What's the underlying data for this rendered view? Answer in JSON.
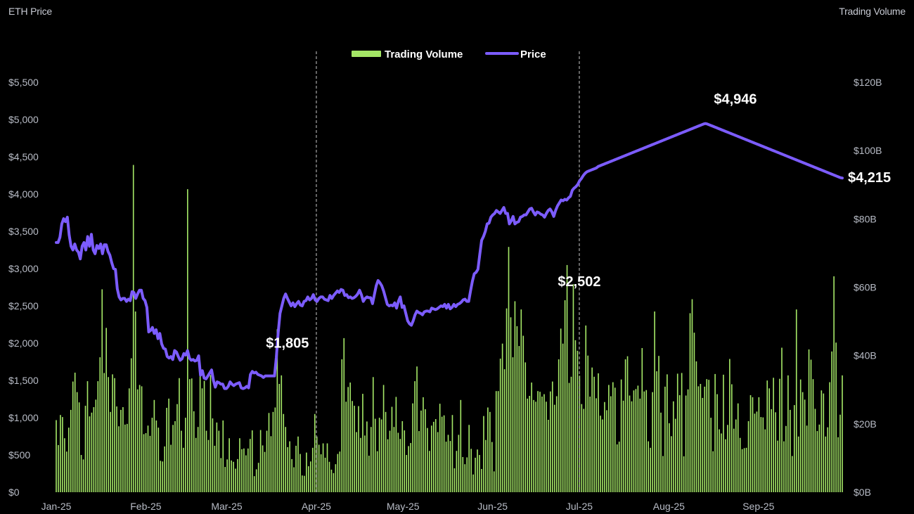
{
  "labels": {
    "left_axis_title": "ETH Price",
    "right_axis_title": "Trading Volume"
  },
  "colors": {
    "background": "#000000",
    "price": "#7c5cff",
    "volume": "#a4e666",
    "axis_text": "#b8bcc6",
    "annotation": "#ffffff",
    "marker_line": "#9a9a9a"
  },
  "chart_data": {
    "type": "bar+line",
    "title": "",
    "xlabel": "",
    "ylabel": "ETH Price",
    "y2label": "Trading Volume",
    "ylim": [
      0,
      5500
    ],
    "y2lim": [
      0,
      120
    ],
    "grid": false,
    "legend_position": "top-center",
    "x_ticks": [
      "Jan-25",
      "Feb-25",
      "Mar-25",
      "Apr-25",
      "May-25",
      "Jun-25",
      "Jul-25",
      "Aug-25",
      "Sep-25"
    ],
    "y_ticks": [
      "$0",
      "$500",
      "$1,000",
      "$1,500",
      "$2,000",
      "$2,500",
      "$3,000",
      "$3,500",
      "$4,000",
      "$4,500",
      "$5,000",
      "$5,500"
    ],
    "y2_ticks": [
      "$0B",
      "$20B",
      "$40B",
      "$60B",
      "$80B",
      "$100B",
      "$120B"
    ],
    "x_start": "2025-01-01",
    "x_end": "2025-09-30",
    "x_tick_dates": [
      "2025-01-01",
      "2025-02-01",
      "2025-03-01",
      "2025-04-01",
      "2025-05-01",
      "2025-06-01",
      "2025-07-01",
      "2025-08-01",
      "2025-09-01"
    ],
    "vertical_markers": [
      "2025-04-01",
      "2025-07-01"
    ],
    "series": [
      {
        "name": "Trading Volume",
        "axis": "right",
        "unit": "B USD",
        "values": [
          21.1,
          13.8,
          22.6,
          22.0,
          15.8,
          11.9,
          18.9,
          24.1,
          32.4,
          35.0,
          29.3,
          26.3,
          10.9,
          9.6,
          25.3,
          32.5,
          22.2,
          23.3,
          24.9,
          27.1,
          32.5,
          39.5,
          59.4,
          34.9,
          48.1,
          33.7,
          23.5,
          34.5,
          33.4,
          25.1,
          19.3,
          24.1,
          24.9,
          19.8,
          20.0,
          30.4,
          39.2,
          95.8,
          52.9,
          30.1,
          31.4,
          31.0,
          17.0,
          17.3,
          19.5,
          16.5,
          21.8,
          27.0,
          21.0,
          18.9,
          9.2,
          9.0,
          13.4,
          24.7,
          27.4,
          13.9,
          19.7,
          20.8,
          25.8,
          33.4,
          18.0,
          13.0,
          21.8,
          88.7,
          33.1,
          33.3,
          23.7,
          15.9,
          19.1,
          37.6,
          30.4,
          32.6,
          18.0,
          15.3,
          34.3,
          21.6,
          13.6,
          20.4,
          18.0,
          10.0,
          21.0,
          7.4,
          9.6,
          15.8,
          9.3,
          8.9,
          6.9,
          9.7,
          15.8,
          12.6,
          12.8,
          10.8,
          12.8,
          15.6,
          18.1,
          4.7,
          6.7,
          8.6,
          18.2,
          13.7,
          11.8,
          18.0,
          23.2,
          16.4,
          23.5,
          24.8,
          47.7,
          31.7,
          34.2,
          22.9,
          19.1,
          13.2,
          14.9,
          9.7,
          7.3,
          13.6,
          16.3,
          11.2,
          4.9,
          4.8,
          11.6,
          7.6,
          9.0,
          13.0,
          22.9,
          16.3,
          13.9,
          11.1,
          14.3,
          10.1,
          14.3,
          8.9,
          6.6,
          5.6,
          8.2,
          11.2,
          11.9,
          38.9,
          45.1,
          26.5,
          30.8,
          32.1,
          26.7,
          25.3,
          17.6,
          25.2,
          15.9,
          28.8,
          16.6,
          20.7,
          10.7,
          19.1,
          33.7,
          21.5,
          12.0,
          21.8,
          21.3,
          31.4,
          23.5,
          15.5,
          18.0,
          25.0,
          19.1,
          27.9,
          17.4,
          15.6,
          20.8,
          18.1,
          10.9,
          13.5,
          14.4,
          26.0,
          32.5,
          36.8,
          17.9,
          23.9,
          27.8,
          24.3,
          18.8,
          12.1,
          19.5,
          20.6,
          21.4,
          17.6,
          25.9,
          22.1,
          22.5,
          14.8,
          16.8,
          15.0,
          22.6,
          7.0,
          12.1,
          16.8,
          27.0,
          10.3,
          8.2,
          10.2,
          19.7,
          12.7,
          5.2,
          10.1,
          12.5,
          10.9,
          6.8,
          22.3,
          15.3,
          24.8,
          23.5,
          14.7,
          6.1,
          29.6,
          29.6,
          39.1,
          43.5,
          36.0,
          53.8,
          71.8,
          51.2,
          39.5,
          55.9,
          48.6,
          42.8,
          53.5,
          45.8,
          38.0,
          27.4,
          28.2,
          32.1,
          27.0,
          26.5,
          29.6,
          29.4,
          28.0,
          28.7,
          26.5,
          21.2,
          29.5,
          32.4,
          25.6,
          28.1,
          38.9,
          47.9,
          43.5,
          56.2,
          66.5,
          32.0,
          33.8,
          60.9,
          44.5,
          41.4,
          34.1,
          25.8,
          24.4,
          48.8,
          40.0,
          28.0,
          36.5,
          33.8,
          27.5,
          34.8,
          22.4,
          21.3,
          26.4,
          24.0,
          31.4,
          28.1,
          32.2,
          30.6,
          14.0,
          14.8,
          33.0,
          26.8,
          38.9,
          39.8,
          28.3,
          26.6,
          29.8,
          30.2,
          31.2,
          27.4,
          42.2,
          29.5,
          29.9,
          14.9,
          13.0,
          29.3,
          52.9,
          35.4,
          39.9,
          23.3,
          10.6,
          30.9,
          34.5,
          20.2,
          16.4,
          26.6,
          21.5,
          34.7,
          28.4,
          34.9,
          10.5,
          28.3,
          30.1,
          52.4,
          56.5,
          46.7,
          38.3,
          31.0,
          31.7,
          27.6,
          30.9,
          33.1,
          32.9,
          21.8,
          12.0,
          34.6,
          28.7,
          18.4,
          17.2,
          34.4,
          15.5,
          19.7,
          39.0,
          31.6,
          18.6,
          21.3,
          26.0,
          15.9,
          12.6,
          12.9,
          13.0,
          20.8,
          28.4,
          27.8,
          23.0,
          23.6,
          27.8,
          22.0,
          21.9,
          18.4,
          32.7,
          30.4,
          24.3,
          33.5,
          23.4,
          15.1,
          33.2,
          42.3,
          14.9,
          19.4,
          34.2,
          24.1,
          10.6,
          25.5,
          53.5,
          16.3,
          33.0,
          29.3,
          27.1,
          19.5,
          41.8,
          38.8,
          33.1,
          24.4,
          17.9,
          19.8,
          29.8,
          28.9,
          16.3,
          19.0,
          32.2,
          41.2,
          63.2,
          43.8,
          16.1,
          22.7,
          34.2
        ]
      },
      {
        "name": "Price",
        "axis": "left",
        "unit": "USD",
        "values": [
          3350,
          3350,
          3420,
          3600,
          3670,
          3630,
          3690,
          3450,
          3300,
          3250,
          3330,
          3250,
          3220,
          3130,
          3300,
          3350,
          3250,
          3430,
          3300,
          3460,
          3250,
          3200,
          3310,
          3270,
          3330,
          3200,
          3320,
          3320,
          3230,
          3180,
          3080,
          3000,
          2990,
          2730,
          2620,
          2580,
          2600,
          2600,
          2560,
          2590,
          2570,
          2690,
          2680,
          2600,
          2660,
          2710,
          2710,
          2600,
          2570,
          2480,
          2150,
          2170,
          2210,
          2130,
          2180,
          2060,
          2130,
          1990,
          1930,
          1920,
          1820,
          1800,
          1820,
          1780,
          1900,
          1880,
          1820,
          1770,
          1790,
          1860,
          1840,
          1900,
          1800,
          1770,
          1780,
          1760,
          1770,
          1830,
          1570,
          1630,
          1530,
          1520,
          1560,
          1600,
          1640,
          1500,
          1410,
          1480,
          1470,
          1450,
          1450,
          1390,
          1390,
          1420,
          1480,
          1450,
          1430,
          1450,
          1460,
          1470,
          1400,
          1390,
          1400,
          1420,
          1400,
          1580,
          1620,
          1600,
          1610,
          1580,
          1570,
          1560,
          1540,
          1560,
          1560,
          1560,
          1560,
          1560,
          1560,
          1810,
          2140,
          2400,
          2500,
          2600,
          2660,
          2600,
          2550,
          2500,
          2540,
          2490,
          2530,
          2560,
          2510,
          2500,
          2560,
          2570,
          2620,
          2580,
          2600,
          2650,
          2580,
          2560,
          2600,
          2620,
          2620,
          2590,
          2580,
          2570,
          2640,
          2600,
          2640,
          2670,
          2700,
          2680,
          2720,
          2710,
          2640,
          2650,
          2610,
          2620,
          2600,
          2610,
          2630,
          2660,
          2710,
          2650,
          2560,
          2600,
          2620,
          2610,
          2610,
          2530,
          2650,
          2770,
          2840,
          2810,
          2770,
          2700,
          2610,
          2520,
          2500,
          2510,
          2500,
          2540,
          2470,
          2560,
          2620,
          2480,
          2500,
          2400,
          2300,
          2260,
          2240,
          2300,
          2380,
          2430,
          2410,
          2400,
          2380,
          2420,
          2430,
          2430,
          2420,
          2470,
          2460,
          2450,
          2460,
          2480,
          2500,
          2490,
          2520,
          2470,
          2520,
          2460,
          2480,
          2520,
          2490,
          2520,
          2530,
          2550,
          2580,
          2590,
          2560,
          2560,
          2700,
          2830,
          2930,
          2950,
          2990,
          3190,
          3380,
          3430,
          3500,
          3600,
          3610,
          3690,
          3720,
          3740,
          3780,
          3760,
          3740,
          3780,
          3820,
          3740,
          3740,
          3600,
          3640,
          3700,
          3600,
          3620,
          3630,
          3690,
          3700,
          3720,
          3720,
          3760,
          3800,
          3810,
          3760,
          3720,
          3760,
          3750,
          3730,
          3720,
          3690,
          3740,
          3780,
          3800,
          3760,
          3700,
          3780,
          3840,
          3880,
          3920,
          3910,
          3930,
          3920,
          3950,
          3970,
          4050,
          4080,
          4100,
          4130,
          4180,
          4210,
          4250,
          4280,
          4300,
          4310,
          4320,
          4330,
          4340,
          4350,
          4370,
          4380,
          4390,
          4400,
          4410,
          4420,
          4430,
          4440,
          4450,
          4460,
          4470,
          4480,
          4490,
          4500,
          4510,
          4520,
          4530,
          4540,
          4550,
          4560,
          4570,
          4580,
          4590,
          4600,
          4610,
          4620,
          4630,
          4640,
          4650,
          4660,
          4670,
          4680,
          4690,
          4700,
          4710,
          4720,
          4730,
          4740,
          4750,
          4760,
          4770,
          4780,
          4790,
          4800,
          4810,
          4820,
          4830,
          4840,
          4850,
          4860,
          4870,
          4880,
          4890,
          4900,
          4910,
          4920,
          4930,
          4940,
          4946,
          4940,
          4930,
          4920,
          4910,
          4900,
          4890,
          4880,
          4870,
          4860,
          4850,
          4840,
          4830,
          4820,
          4810,
          4800,
          4790,
          4780,
          4770,
          4760,
          4750,
          4740,
          4730,
          4720,
          4710,
          4700,
          4690,
          4680,
          4670,
          4660,
          4650,
          4640,
          4630,
          4620,
          4610,
          4600,
          4590,
          4580,
          4570,
          4560,
          4550,
          4540,
          4530,
          4520,
          4510,
          4500,
          4490,
          4480,
          4470,
          4460,
          4450,
          4440,
          4430,
          4420,
          4410,
          4400,
          4390,
          4380,
          4370,
          4360,
          4350,
          4340,
          4330,
          4320,
          4310,
          4300,
          4290,
          4280,
          4270,
          4260,
          4250,
          4240,
          4230,
          4220,
          4215
        ]
      }
    ],
    "annotations": [
      {
        "label": "$1,805",
        "date": "2025-03-22",
        "value": 1805
      },
      {
        "label": "$2,502",
        "date": "2025-07-01",
        "value": 2502
      },
      {
        "label": "$4,946",
        "date": "2025-08-24",
        "value": 4946
      },
      {
        "label": "$4,215",
        "date": "2025-09-30",
        "value": 4215
      }
    ]
  }
}
